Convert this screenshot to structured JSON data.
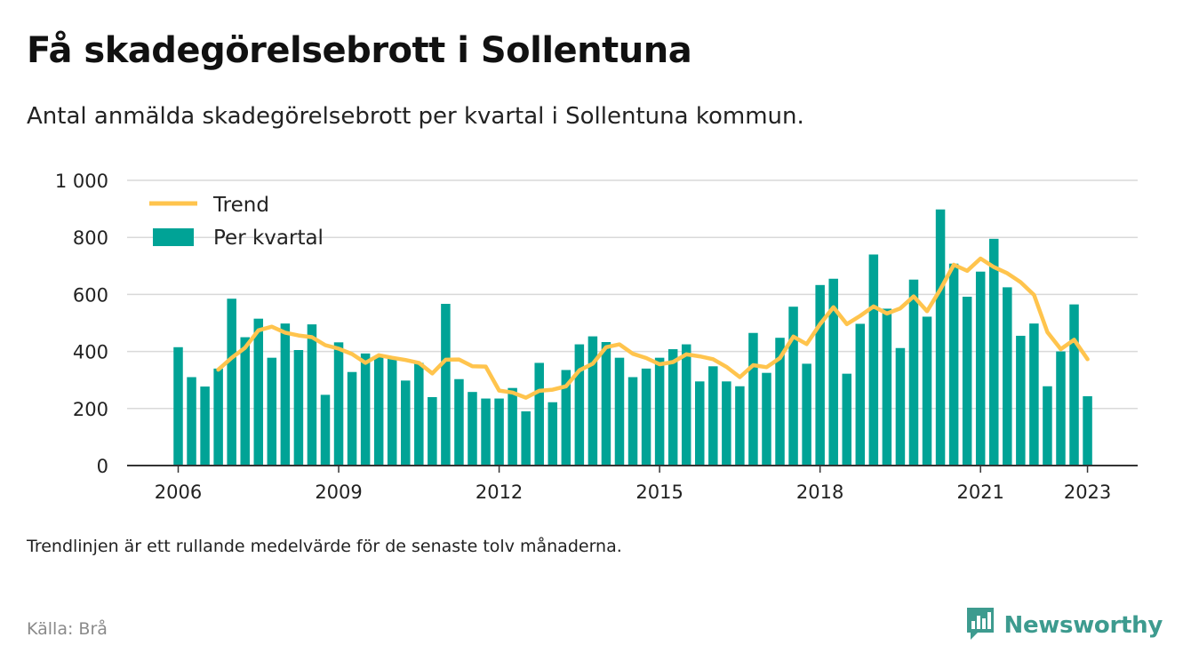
{
  "title": "Få skadegörelsebrott i Sollentuna",
  "subtitle": "Antal anmälda skadegörelsebrott per kvartal i Sollentuna kommun.",
  "note": "Trendlinjen är ett rullande medelvärde för de senaste tolv månaderna.",
  "source": "Källa: Brå",
  "brand": {
    "name": "Newsworthy",
    "icon": "newsworthy-bar-chart-icon"
  },
  "colors": {
    "bars": "#00a396",
    "trend": "#ffc44d",
    "axis": "#333333",
    "grid": "#d9d9d9"
  },
  "chart_data": {
    "type": "bar",
    "xlabel": "",
    "ylabel": "",
    "ylim": [
      0,
      1000
    ],
    "yticks": [
      0,
      200,
      400,
      600,
      800,
      1000
    ],
    "ytick_labels": [
      "0",
      "200",
      "400",
      "600",
      "800",
      "1 000"
    ],
    "xticks": [
      2006,
      2009,
      2012,
      2015,
      2018,
      2021,
      2023
    ],
    "xtick_labels": [
      "2006",
      "2009",
      "2012",
      "2015",
      "2018",
      "2021",
      "2023"
    ],
    "grid": true,
    "legend_position": "top-left",
    "x": [
      "2006Q1",
      "2006Q2",
      "2006Q3",
      "2006Q4",
      "2007Q1",
      "2007Q2",
      "2007Q3",
      "2007Q4",
      "2008Q1",
      "2008Q2",
      "2008Q3",
      "2008Q4",
      "2009Q1",
      "2009Q2",
      "2009Q3",
      "2009Q4",
      "2010Q1",
      "2010Q2",
      "2010Q3",
      "2010Q4",
      "2011Q1",
      "2011Q2",
      "2011Q3",
      "2011Q4",
      "2012Q1",
      "2012Q2",
      "2012Q3",
      "2012Q4",
      "2013Q1",
      "2013Q2",
      "2013Q3",
      "2013Q4",
      "2014Q1",
      "2014Q2",
      "2014Q3",
      "2014Q4",
      "2015Q1",
      "2015Q2",
      "2015Q3",
      "2015Q4",
      "2016Q1",
      "2016Q2",
      "2016Q3",
      "2016Q4",
      "2017Q1",
      "2017Q2",
      "2017Q3",
      "2017Q4",
      "2018Q1",
      "2018Q2",
      "2018Q3",
      "2018Q4",
      "2019Q1",
      "2019Q2",
      "2019Q3",
      "2019Q4",
      "2020Q1",
      "2020Q2",
      "2020Q3",
      "2020Q4",
      "2021Q1",
      "2021Q2",
      "2021Q3",
      "2021Q4",
      "2022Q1",
      "2022Q2",
      "2022Q3",
      "2022Q4",
      "2023Q1"
    ],
    "series": [
      {
        "name": "Per kvartal",
        "type": "bar",
        "values": [
          415,
          310,
          277,
          340,
          585,
          450,
          515,
          378,
          498,
          405,
          495,
          248,
          432,
          328,
          393,
          385,
          378,
          298,
          360,
          240,
          567,
          303,
          258,
          235,
          235,
          272,
          190,
          360,
          222,
          335,
          425,
          453,
          433,
          378,
          310,
          340,
          378,
          408,
          425,
          295,
          348,
          295,
          278,
          465,
          325,
          448,
          557,
          357,
          633,
          655,
          322,
          497,
          740,
          550,
          412,
          652,
          522,
          898,
          708,
          592,
          680,
          795,
          625,
          455,
          498,
          278,
          400,
          565,
          243
        ]
      },
      {
        "name": "Trend",
        "type": "line",
        "values": [
          null,
          null,
          null,
          336,
          378,
          413,
          474,
          487,
          466,
          456,
          450,
          422,
          410,
          391,
          360,
          387,
          378,
          370,
          360,
          323,
          371,
          372,
          348,
          347,
          263,
          256,
          238,
          262,
          266,
          278,
          334,
          357,
          415,
          425,
          392,
          377,
          355,
          363,
          390,
          383,
          373,
          346,
          310,
          352,
          345,
          377,
          452,
          426,
          496,
          555,
          496,
          525,
          558,
          533,
          551,
          593,
          541,
          618,
          704,
          683,
          726,
          696,
          674,
          643,
          598,
          468,
          408,
          441,
          373
        ]
      }
    ]
  }
}
